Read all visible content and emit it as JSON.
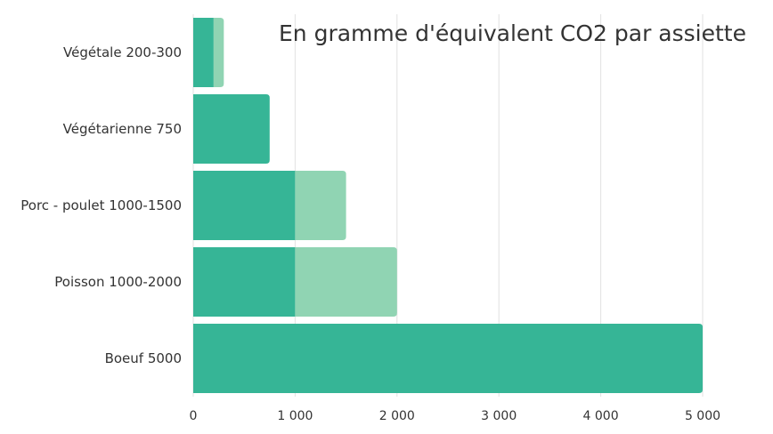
{
  "chart_data": {
    "type": "bar",
    "orientation": "horizontal",
    "stacked": true,
    "title": "En gramme d'équivalent CO2 par assiette",
    "categories": [
      "Végétale 200-300",
      "Végétarienne 750",
      "Porc - poulet 1000-1500",
      "Poisson 1000-2000",
      "Boeuf 5000"
    ],
    "series": [
      {
        "values": [
          200,
          750,
          1000,
          1000,
          5000
        ],
        "color": "#36b596"
      },
      {
        "values": [
          100,
          0,
          500,
          1000,
          0
        ],
        "color": "#90d4b3"
      }
    ],
    "xticks": [
      "0",
      "1 000",
      "2 000",
      "3 000",
      "4 000",
      "5 000"
    ],
    "xlim": [
      0,
      5000
    ],
    "grid": true,
    "xlabel": "",
    "ylabel": ""
  }
}
